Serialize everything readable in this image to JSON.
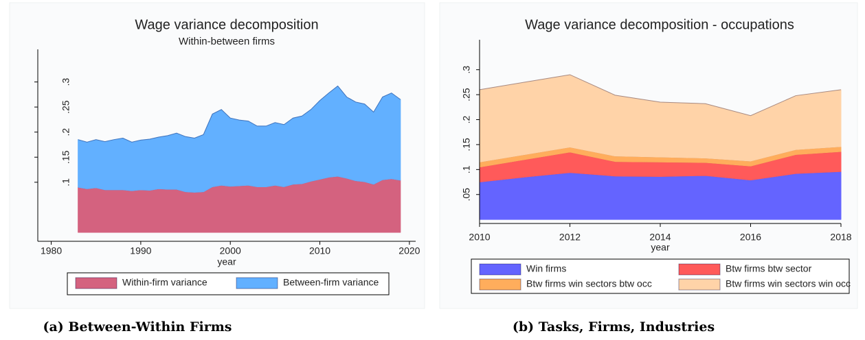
{
  "chart_data": [
    {
      "type": "area",
      "title": "Wage variance decomposition",
      "subtitle": "Within-between firms",
      "xlabel": "year",
      "caption": "(a) Between-Within Firms",
      "x": [
        1983,
        1984,
        1985,
        1986,
        1987,
        1988,
        1989,
        1990,
        1991,
        1992,
        1993,
        1994,
        1995,
        1996,
        1997,
        1998,
        1999,
        2000,
        2001,
        2002,
        2003,
        2004,
        2005,
        2006,
        2007,
        2008,
        2009,
        2010,
        2011,
        2012,
        2013,
        2014,
        2015,
        2016,
        2017,
        2018,
        2019
      ],
      "stacked": true,
      "series": [
        {
          "name": "Within-firm variance",
          "color": "#d4627f",
          "values": [
            0.09,
            0.087,
            0.089,
            0.085,
            0.085,
            0.085,
            0.083,
            0.085,
            0.084,
            0.087,
            0.086,
            0.086,
            0.081,
            0.08,
            0.081,
            0.091,
            0.094,
            0.092,
            0.093,
            0.094,
            0.091,
            0.091,
            0.094,
            0.091,
            0.096,
            0.097,
            0.102,
            0.106,
            0.11,
            0.112,
            0.108,
            0.103,
            0.101,
            0.096,
            0.105,
            0.107,
            0.104
          ]
        },
        {
          "name": "Between-firm variance",
          "color": "#62b0ff",
          "values": [
            0.095,
            0.093,
            0.096,
            0.096,
            0.1,
            0.103,
            0.097,
            0.099,
            0.102,
            0.103,
            0.107,
            0.112,
            0.11,
            0.108,
            0.114,
            0.145,
            0.151,
            0.136,
            0.131,
            0.128,
            0.121,
            0.121,
            0.125,
            0.124,
            0.132,
            0.135,
            0.143,
            0.157,
            0.168,
            0.18,
            0.162,
            0.157,
            0.155,
            0.144,
            0.165,
            0.171,
            0.161
          ]
        }
      ],
      "xlim": [
        1978.5,
        2020.7
      ],
      "xticks": [
        1980,
        1990,
        2000,
        2010,
        2020
      ],
      "ylim": [
        -0.015,
        0.365
      ],
      "yticks": [
        {
          "value": 0.1,
          "label": ".1"
        },
        {
          "value": 0.15,
          "label": ".15"
        },
        {
          "value": 0.2,
          "label": ".2"
        },
        {
          "value": 0.25,
          "label": ".25"
        },
        {
          "value": 0.3,
          "label": ".3"
        }
      ]
    },
    {
      "type": "area",
      "title": "Wage variance decomposition - occupations",
      "xlabel": "year",
      "caption": "(b) Tasks, Firms, Industries",
      "x": [
        2010,
        2011,
        2012,
        2013,
        2014,
        2015,
        2016,
        2017,
        2018
      ],
      "stacked": true,
      "series": [
        {
          "name": "Win firms",
          "color": "#6464ff",
          "values": [
            0.075,
            0.085,
            0.094,
            0.087,
            0.086,
            0.088,
            0.079,
            0.092,
            0.096
          ]
        },
        {
          "name": "Btw firms btw sector",
          "color": "#ff5a5a",
          "values": [
            0.03,
            0.035,
            0.041,
            0.029,
            0.029,
            0.026,
            0.028,
            0.038,
            0.04
          ]
        },
        {
          "name": "Btw firms win sectors btw occ",
          "color": "#ffad5c",
          "values": [
            0.01,
            0.01,
            0.01,
            0.011,
            0.01,
            0.009,
            0.01,
            0.01,
            0.01
          ]
        },
        {
          "name": "Btw firms win sectors win occ",
          "color": "#ffd3a8",
          "values": [
            0.145,
            0.145,
            0.145,
            0.122,
            0.11,
            0.109,
            0.091,
            0.108,
            0.114
          ]
        }
      ],
      "xlim": [
        2010,
        2018
      ],
      "xticks": [
        2010,
        2012,
        2014,
        2016,
        2018
      ],
      "ylim": [
        -0.008,
        0.36
      ],
      "yticks": [
        {
          "value": 0.05,
          "label": ".05"
        },
        {
          "value": 0.1,
          "label": ".1"
        },
        {
          "value": 0.15,
          "label": ".15"
        },
        {
          "value": 0.2,
          "label": ".2"
        },
        {
          "value": 0.25,
          "label": ".25"
        },
        {
          "value": 0.3,
          "label": ".3"
        }
      ]
    }
  ]
}
